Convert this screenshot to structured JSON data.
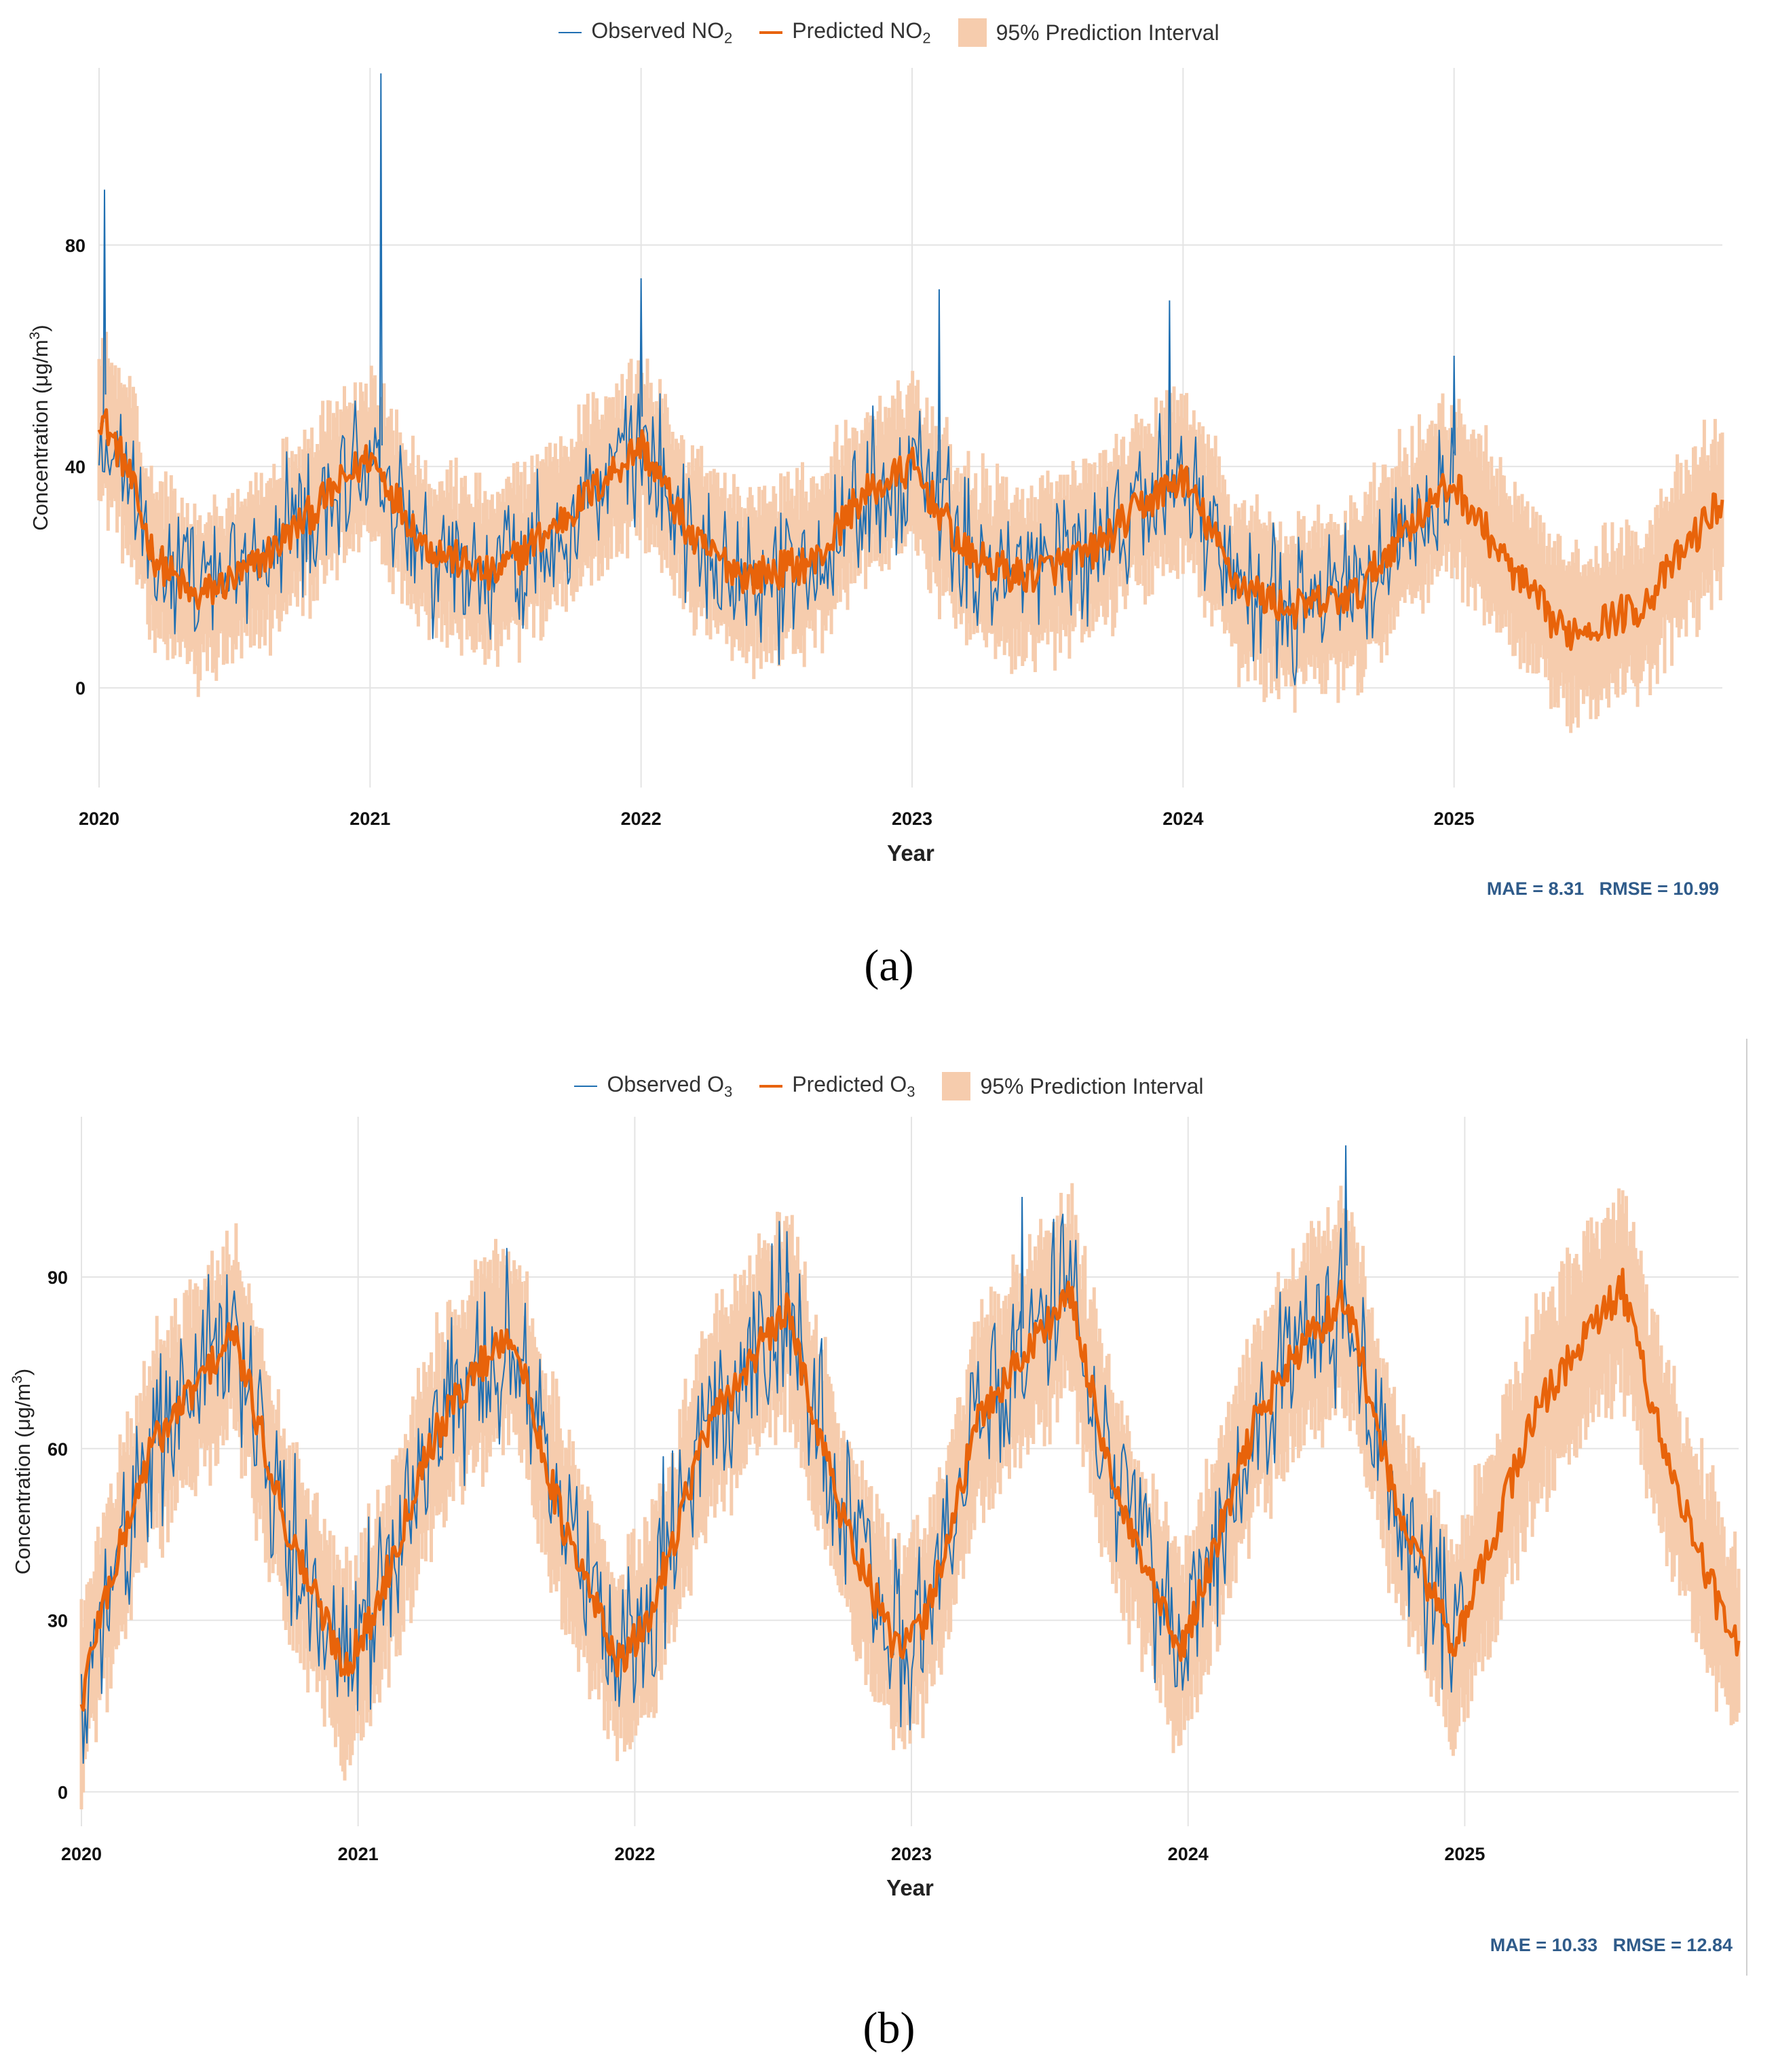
{
  "colors": {
    "observed": "#1f6fb2",
    "predicted": "#e8630a",
    "interval": "#f6ccad",
    "grid": "#e4e4e4",
    "metrics": "#2f5b8a"
  },
  "chart_data": [
    {
      "id": "a",
      "type": "line",
      "pollutant": "NO2",
      "legend": {
        "observed": "Observed NO",
        "observed_sub": "2",
        "predicted": "Predicted NO",
        "predicted_sub": "2",
        "interval": "95% Prediction Interval"
      },
      "xlabel": "Year",
      "ylabel_main": "Concentration (μg/m",
      "ylabel_sup": "3",
      "ylabel_close": ")",
      "x_ticks": [
        "2020",
        "2021",
        "2022",
        "2023",
        "2024",
        "2025"
      ],
      "xlim": [
        2020.0,
        2025.99
      ],
      "y_ticks": [
        0,
        40,
        80
      ],
      "ylim": [
        -18,
        112
      ],
      "observed_end": 2025.0,
      "mae_label": "MAE = 8.31",
      "rmse_label": "RMSE = 10.99",
      "caption": "(a)",
      "predicted_anchors": {
        "x": [
          2020.0,
          2020.1,
          2020.2,
          2020.35,
          2020.55,
          2020.75,
          2021.0,
          2021.2,
          2021.45,
          2021.7,
          2022.0,
          2022.2,
          2022.4,
          2022.65,
          2022.8,
          2023.0,
          2023.2,
          2023.4,
          2023.65,
          2023.85,
          2024.0,
          2024.2,
          2024.4,
          2024.65,
          2024.8,
          2025.0,
          2025.2,
          2025.4,
          2025.55,
          2025.7,
          2025.85,
          2025.99
        ],
        "y": [
          50,
          40,
          24,
          16,
          21,
          30,
          42,
          26,
          20,
          30,
          44,
          26,
          20,
          23,
          34,
          40,
          24,
          20,
          24,
          33,
          38,
          19,
          14,
          17,
          28,
          37,
          22,
          10,
          12,
          15,
          25,
          34
        ]
      },
      "spikes": {
        "x": [
          2021.04,
          2020.02,
          2022.0,
          2023.1,
          2023.95,
          2025.0
        ],
        "y": [
          111,
          90,
          74,
          72,
          70,
          60
        ]
      },
      "interval_halfwidth": 13,
      "observed_noise": 9
    },
    {
      "id": "b",
      "type": "line",
      "pollutant": "O3",
      "legend": {
        "observed": "Observed O",
        "observed_sub": "3",
        "predicted": "Predicted O",
        "predicted_sub": "3",
        "interval": "95% Prediction Interval"
      },
      "xlabel": "Year",
      "ylabel_main": "Concentration (μg/m",
      "ylabel_sup": "3",
      "ylabel_close": ")",
      "x_ticks": [
        "2020",
        "2021",
        "2022",
        "2023",
        "2024",
        "2025"
      ],
      "xlim": [
        2020.0,
        2025.99
      ],
      "y_ticks": [
        0,
        30,
        60,
        90
      ],
      "ylim": [
        -6,
        118
      ],
      "observed_end": 2025.0,
      "mae_label": "MAE = 10.33",
      "rmse_label": "RMSE = 12.84",
      "caption": "(b)",
      "predicted_anchors": {
        "x": [
          2020.0,
          2020.05,
          2020.25,
          2020.4,
          2020.55,
          2020.75,
          2020.95,
          2021.05,
          2021.25,
          2021.4,
          2021.55,
          2021.75,
          2021.95,
          2022.05,
          2022.25,
          2022.4,
          2022.55,
          2022.75,
          2022.95,
          2023.05,
          2023.25,
          2023.4,
          2023.57,
          2023.75,
          2023.97,
          2024.05,
          2024.25,
          2024.4,
          2024.57,
          2024.75,
          2024.97,
          2025.05,
          2025.25,
          2025.4,
          2025.57,
          2025.75,
          2025.9,
          2025.99
        ],
        "y": [
          15,
          28,
          60,
          70,
          80,
          45,
          22,
          30,
          60,
          72,
          81,
          45,
          22,
          30,
          62,
          74,
          84,
          48,
          24,
          30,
          66,
          76,
          87,
          50,
          24,
          35,
          66,
          77,
          87,
          50,
          25,
          37,
          66,
          77,
          88,
          55,
          35,
          24
        ]
      },
      "spikes": {
        "x": [
          2024.57,
          2023.4,
          2022.55
        ],
        "y": [
          113,
          104,
          98
        ]
      },
      "interval_halfwidth": 15,
      "observed_noise": 11
    }
  ]
}
